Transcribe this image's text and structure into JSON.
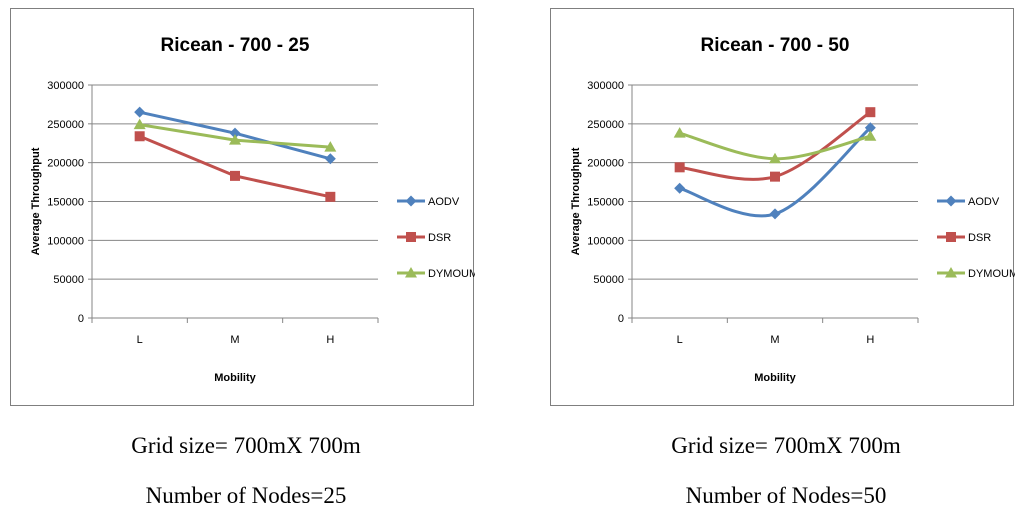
{
  "chart_data": [
    {
      "type": "line",
      "title": "Ricean - 700 - 25",
      "xlabel": "Mobility",
      "ylabel": "Average Throughput",
      "categories": [
        "L",
        "M",
        "H"
      ],
      "ylim": [
        0,
        300000
      ],
      "yticks": [
        "0",
        "50000",
        "100000",
        "150000",
        "200000",
        "250000",
        "300000"
      ],
      "grid": true,
      "smooth": false,
      "legend_position": "right",
      "series": [
        {
          "name": "AODV",
          "values": [
            265000,
            238000,
            205000
          ],
          "color": "#4f81bd",
          "marker": "diamond"
        },
        {
          "name": "DSR",
          "values": [
            234000,
            183000,
            156000
          ],
          "color": "#c0504d",
          "marker": "square"
        },
        {
          "name": "DYMOUM",
          "values": [
            249000,
            229000,
            220000
          ],
          "color": "#9bbb59",
          "marker": "triangle"
        }
      ],
      "caption_line1": "Grid size= 700mX 700m",
      "caption_line2": "Number of Nodes=25"
    },
    {
      "type": "line",
      "title": "Ricean - 700 - 50",
      "xlabel": "Mobility",
      "ylabel": "Average Throughput",
      "categories": [
        "L",
        "M",
        "H"
      ],
      "ylim": [
        0,
        300000
      ],
      "yticks": [
        "0",
        "50000",
        "100000",
        "150000",
        "200000",
        "250000",
        "300000"
      ],
      "grid": true,
      "smooth": true,
      "legend_position": "right",
      "series": [
        {
          "name": "AODV",
          "values": [
            167000,
            134000,
            245000
          ],
          "color": "#4f81bd",
          "marker": "diamond"
        },
        {
          "name": "DSR",
          "values": [
            194000,
            182000,
            265000
          ],
          "color": "#c0504d",
          "marker": "square"
        },
        {
          "name": "DYMOUM",
          "values": [
            238000,
            205000,
            234000
          ],
          "color": "#9bbb59",
          "marker": "triangle"
        }
      ],
      "caption_line1": "Grid size= 700mX 700m",
      "caption_line2": "Number of Nodes=50"
    }
  ]
}
